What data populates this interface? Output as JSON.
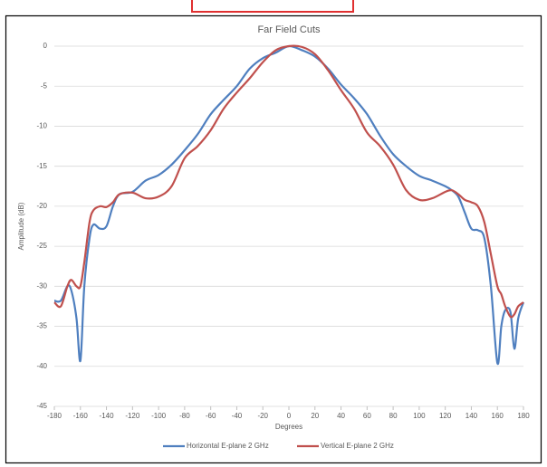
{
  "chart_data": {
    "type": "line",
    "title": "Far Field Cuts",
    "x_label": "Degrees",
    "y_label": "Amplitude (dB)",
    "x": [
      -180,
      -175,
      -170,
      -167,
      -163,
      -160,
      -157,
      -153,
      -150,
      -145,
      -140,
      -135,
      -130,
      -120,
      -110,
      -100,
      -90,
      -80,
      -70,
      -60,
      -50,
      -40,
      -30,
      -20,
      -10,
      0,
      10,
      20,
      30,
      40,
      50,
      60,
      70,
      80,
      90,
      100,
      110,
      120,
      125,
      130,
      135,
      140,
      145,
      150,
      155,
      160,
      163,
      166,
      170,
      173,
      176,
      180
    ],
    "series": [
      {
        "name": "Horizontal E-plane 2 GHz",
        "color": "#4f7fbf",
        "values": [
          -31.8,
          -31.8,
          -30,
          -30.5,
          -34,
          -39.3,
          -30,
          -24,
          -22.3,
          -22.8,
          -22.5,
          -20,
          -18.5,
          -18.2,
          -16.8,
          -16.1,
          -14.8,
          -13,
          -11,
          -8.5,
          -6.7,
          -5,
          -2.8,
          -1.5,
          -0.8,
          0,
          -0.5,
          -1.3,
          -2.8,
          -4.8,
          -6.5,
          -8.5,
          -11.2,
          -13.5,
          -15,
          -16.2,
          -16.8,
          -17.5,
          -18,
          -18.8,
          -20.8,
          -22.8,
          -23,
          -24,
          -30,
          -39.6,
          -35,
          -33,
          -33.2,
          -37.8,
          -34,
          -32
        ]
      },
      {
        "name": "Vertical E-plane 2 GHz",
        "color": "#c0504d",
        "values": [
          -32,
          -32.5,
          -30,
          -29.2,
          -30,
          -30,
          -27,
          -22,
          -20.5,
          -20,
          -20.1,
          -19.5,
          -18.5,
          -18.3,
          -19,
          -18.8,
          -17.5,
          -14,
          -12.5,
          -10.5,
          -7.8,
          -5.8,
          -4,
          -2,
          -0.5,
          0,
          -0.1,
          -1,
          -3,
          -5.5,
          -7.8,
          -10.8,
          -12.5,
          -14.8,
          -18,
          -19.2,
          -19,
          -18.2,
          -18,
          -18.5,
          -19.2,
          -19.5,
          -20,
          -22,
          -26,
          -30,
          -31,
          -32.5,
          -33.8,
          -33.5,
          -32.5,
          -32
        ]
      }
    ],
    "xlim": [
      -180,
      180
    ],
    "ylim": [
      -45,
      0
    ],
    "xticks": [
      -180,
      -160,
      -140,
      -120,
      -100,
      -80,
      -60,
      -40,
      -20,
      0,
      20,
      40,
      60,
      80,
      100,
      120,
      140,
      160,
      180
    ],
    "yticks": [
      0,
      -5,
      -10,
      -15,
      -20,
      -25,
      -30,
      -35,
      -40,
      -45
    ],
    "grid": true,
    "legend": "bottom"
  }
}
